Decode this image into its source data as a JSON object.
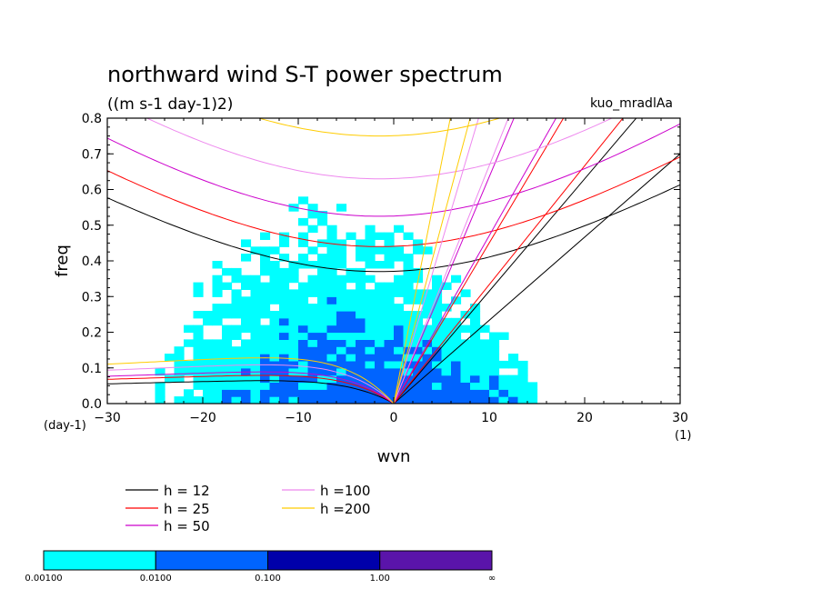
{
  "chart_data": {
    "type": "heatmap",
    "title": "northward wind S-T power spectrum",
    "subtitle": "((m s-1 day-1)2)",
    "run_label": "kuo_mradlAa",
    "xlabel": "wvn",
    "ylabel": "freq",
    "x_unit": "(1)",
    "y_unit": "(day-1)",
    "xlim": [
      -30,
      30
    ],
    "ylim": [
      0,
      0.8
    ],
    "x_ticks": [
      -30,
      -20,
      -10,
      0,
      10,
      20,
      30
    ],
    "y_ticks": [
      0.0,
      0.1,
      0.2,
      0.3,
      0.4,
      0.5,
      0.6,
      0.7,
      0.8
    ],
    "x_tick_labels": [
      "−30",
      "−20",
      "−10",
      "0",
      "10",
      "20",
      "30"
    ],
    "y_tick_labels": [
      "0.0",
      "0.1",
      "0.2",
      "0.3",
      "0.4",
      "0.5",
      "0.6",
      "0.7",
      "0.8"
    ],
    "colorbar": {
      "levels": [
        "0.00100",
        "0.0100",
        "0.100",
        "1.00",
        "∞"
      ],
      "colors": [
        "#00ffff",
        "#0064ff",
        "#0000aa",
        "#5a14aa"
      ]
    },
    "dispersion_curves": [
      {
        "h": 12,
        "label": "h = 12",
        "color": "#000000",
        "erp_min_freq": 0.37,
        "kelvin_freq_at_k30": 0.7,
        "mrg_min_freq": 0.065
      },
      {
        "h": 25,
        "label": "h = 25",
        "color": "#ff0000",
        "erp_min_freq": 0.44,
        "kelvin_freq_at_k24": 0.8,
        "mrg_min_freq": 0.08
      },
      {
        "h": 50,
        "label": "h = 50",
        "color": "#cc00cc",
        "erp_min_freq": 0.525,
        "kelvin_freq_at_k17": 0.8,
        "mrg_min_freq": 0.09
      },
      {
        "h": 100,
        "label": "h =100",
        "color": "#ee88ee",
        "erp_min_freq": 0.63,
        "kelvin_freq_at_k12": 0.8,
        "mrg_min_freq": 0.11
      },
      {
        "h": 200,
        "label": "h =200",
        "color": "#ffcc00",
        "erp_min_freq": 0.75,
        "kelvin_freq_at_k8": 0.8,
        "mrg_min_freq": 0.13
      }
    ]
  }
}
